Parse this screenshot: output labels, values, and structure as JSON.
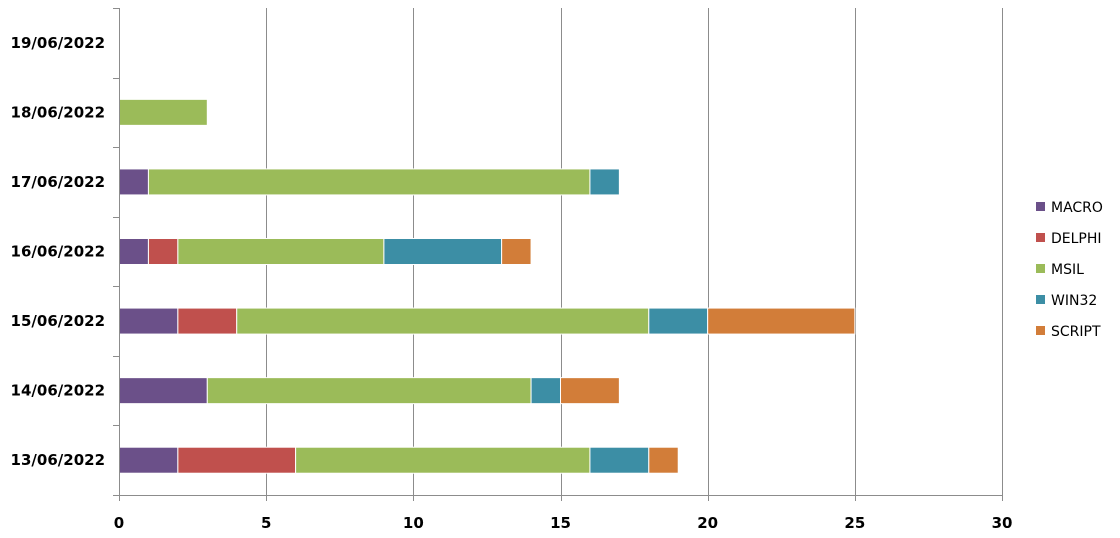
{
  "chart_data": {
    "type": "bar",
    "orientation": "horizontal",
    "stacked": true,
    "title": "",
    "xlabel": "",
    "ylabel": "",
    "xlim": [
      0,
      30
    ],
    "x_ticks": [
      0,
      5,
      10,
      15,
      20,
      25,
      30
    ],
    "grid": "vertical",
    "legend_position": "right",
    "categories": [
      "13/06/2022",
      "14/06/2022",
      "15/06/2022",
      "16/06/2022",
      "17/06/2022",
      "18/06/2022",
      "19/06/2022"
    ],
    "series": [
      {
        "name": "MACRO",
        "color": "#6b5089",
        "values": [
          2,
          3,
          2,
          1,
          1,
          0,
          0
        ]
      },
      {
        "name": "DELPHI",
        "color": "#c0504d",
        "values": [
          4,
          0,
          2,
          1,
          0,
          0,
          0
        ]
      },
      {
        "name": "MSIL",
        "color": "#9bbb59",
        "values": [
          10,
          11,
          14,
          7,
          15,
          3,
          0
        ]
      },
      {
        "name": "WIN32",
        "color": "#3c8ea5",
        "values": [
          2,
          1,
          2,
          4,
          1,
          0,
          0
        ]
      },
      {
        "name": "SCRIPT",
        "color": "#d27d39",
        "values": [
          1,
          2,
          5,
          1,
          0,
          0,
          0
        ]
      }
    ]
  }
}
